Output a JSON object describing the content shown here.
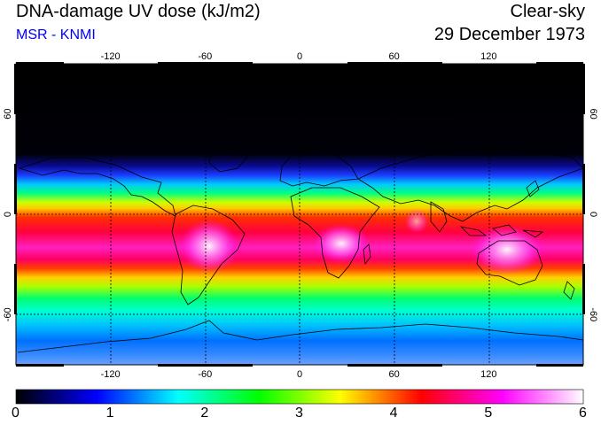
{
  "header": {
    "title": "DNA-damage UV dose (kJ/m2)",
    "subtitle": "MSR - KNMI",
    "mode": "Clear-sky",
    "date": "29 December 1973"
  },
  "map": {
    "projection": "equirectangular",
    "lon_range": [
      -180,
      180
    ],
    "lat_range": [
      -90,
      90
    ],
    "lon_ticks": [
      -120,
      -60,
      0,
      60,
      120
    ],
    "lat_ticks": [
      60,
      0,
      -60
    ],
    "grid": "dotted"
  },
  "colorbar": {
    "min": 0,
    "max": 6,
    "labels": [
      "0",
      "1",
      "2",
      "3",
      "4",
      "5",
      "6"
    ],
    "colors": [
      "#000000",
      "#0000ff",
      "#00ffff",
      "#00ff00",
      "#ffff00",
      "#ff0000",
      "#ff00ff",
      "#ffffff"
    ]
  }
}
